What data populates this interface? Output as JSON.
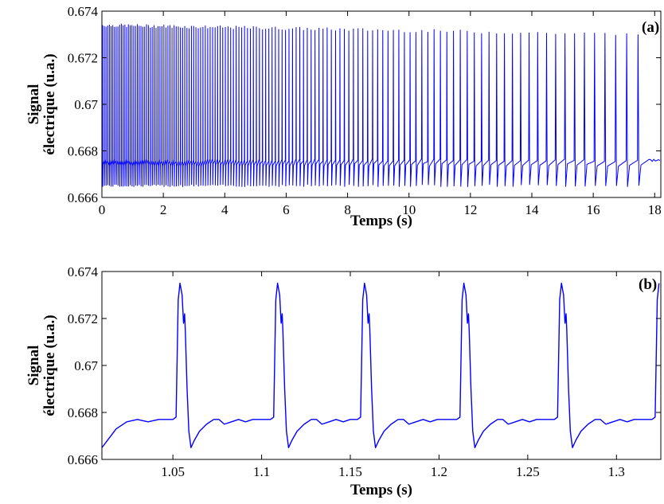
{
  "chart_data": [
    {
      "type": "line",
      "panel_label": "(a)",
      "xlabel": "Temps (s)",
      "ylabel": [
        "Signal",
        "électrique (u.a.)"
      ],
      "xlim": [
        0,
        18.2
      ],
      "ylim": [
        0.666,
        0.674
      ],
      "xticks": [
        "0",
        "2",
        "4",
        "6",
        "8",
        "10",
        "12",
        "14",
        "16",
        "18"
      ],
      "yticks": [
        "0.666",
        "0.668",
        "0.67",
        "0.672",
        "0.674"
      ],
      "line_color": "#0000ff",
      "series": [
        {
          "baseline": 0.6676,
          "spike_peak_start": 0.6734,
          "spike_peak_end": 0.673,
          "trough": 0.6665,
          "period_start_s": 0.055,
          "period_end_s": 0.38,
          "last_spike_s": 17.45
        }
      ]
    },
    {
      "type": "line",
      "panel_label": "(b)",
      "xlabel": "Temps (s)",
      "ylabel": [
        "Signal",
        "électrique (u.a.)"
      ],
      "xlim": [
        1.01,
        1.325
      ],
      "ylim": [
        0.666,
        0.674
      ],
      "xticks": [
        "1.05",
        "1.1",
        "1.15",
        "1.2",
        "1.25",
        "1.3"
      ],
      "yticks": [
        "0.666",
        "0.668",
        "0.67",
        "0.672",
        "0.674"
      ],
      "line_color": "#0000ff",
      "series": [
        {
          "spike_times_s": [
            1.053,
            1.108,
            1.157,
            1.213,
            1.268,
            1.323
          ],
          "peak": 0.6735,
          "secondary_peak": 0.6722,
          "baseline": 0.6677,
          "trough": 0.6665
        }
      ]
    }
  ]
}
